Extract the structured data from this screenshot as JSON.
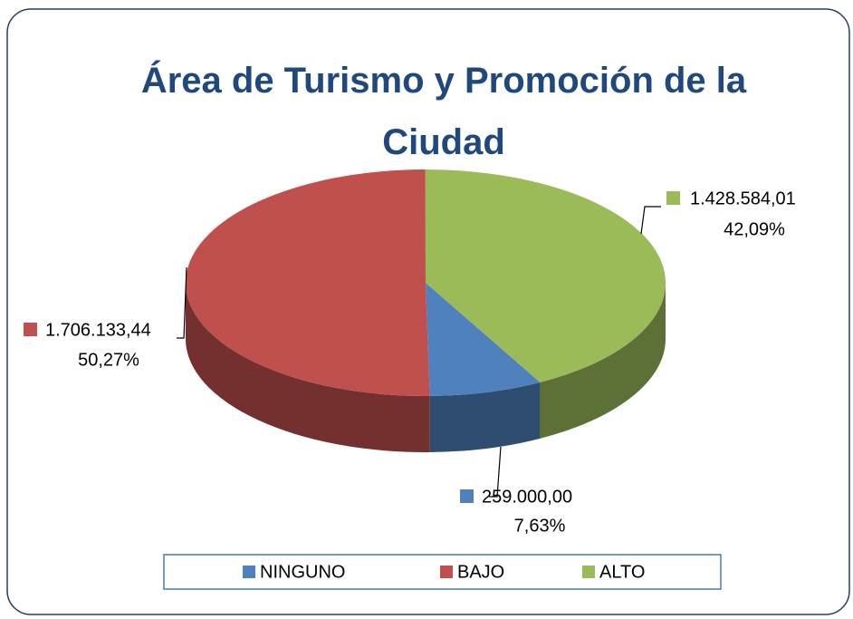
{
  "chart_data": {
    "type": "pie",
    "title": "Área de Turismo y Promoción de la Ciudad",
    "categories": [
      "NINGUNO",
      "BAJO",
      "ALTO"
    ],
    "values": [
      259000.0,
      1706133.44,
      1428584.01
    ],
    "value_labels": [
      "259.000,00",
      "1.706.133,44",
      "1.428.584,01"
    ],
    "percentages": [
      7.63,
      50.27,
      42.09
    ],
    "percentage_labels": [
      "7,63%",
      "50,27%",
      "42,09%"
    ],
    "colors": [
      "#4f81bd",
      "#c0504d",
      "#9bbb59"
    ],
    "legend": "bottom"
  }
}
